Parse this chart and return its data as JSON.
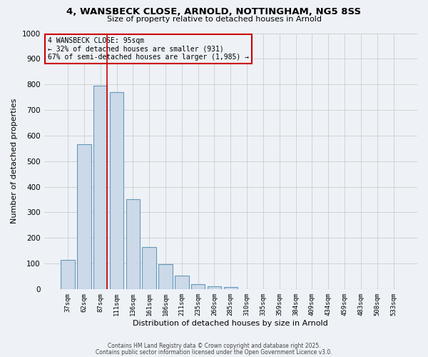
{
  "title": "4, WANSBECK CLOSE, ARNOLD, NOTTINGHAM, NG5 8SS",
  "subtitle": "Size of property relative to detached houses in Arnold",
  "xlabel": "Distribution of detached houses by size in Arnold",
  "ylabel": "Number of detached properties",
  "bar_labels": [
    "37sqm",
    "62sqm",
    "87sqm",
    "111sqm",
    "136sqm",
    "161sqm",
    "186sqm",
    "211sqm",
    "235sqm",
    "260sqm",
    "285sqm",
    "310sqm",
    "335sqm",
    "359sqm",
    "384sqm",
    "409sqm",
    "434sqm",
    "459sqm",
    "483sqm",
    "508sqm",
    "533sqm"
  ],
  "bar_values": [
    115,
    565,
    795,
    770,
    350,
    165,
    98,
    52,
    18,
    10,
    8,
    0,
    0,
    0,
    0,
    0,
    0,
    0,
    0,
    0,
    0
  ],
  "bar_color": "#ccd9e8",
  "bar_edgecolor": "#6699bb",
  "vline_color": "#cc0000",
  "vline_index": 2,
  "annotation_line1": "4 WANSBECK CLOSE: 95sqm",
  "annotation_line2": "← 32% of detached houses are smaller (931)",
  "annotation_line3": "67% of semi-detached houses are larger (1,985) →",
  "box_edgecolor": "#cc0000",
  "ylim": [
    0,
    1000
  ],
  "yticks": [
    0,
    100,
    200,
    300,
    400,
    500,
    600,
    700,
    800,
    900,
    1000
  ],
  "grid_color": "#cccccc",
  "bg_color": "#eef2f7",
  "footer1": "Contains HM Land Registry data © Crown copyright and database right 2025.",
  "footer2": "Contains public sector information licensed under the Open Government Licence v3.0."
}
